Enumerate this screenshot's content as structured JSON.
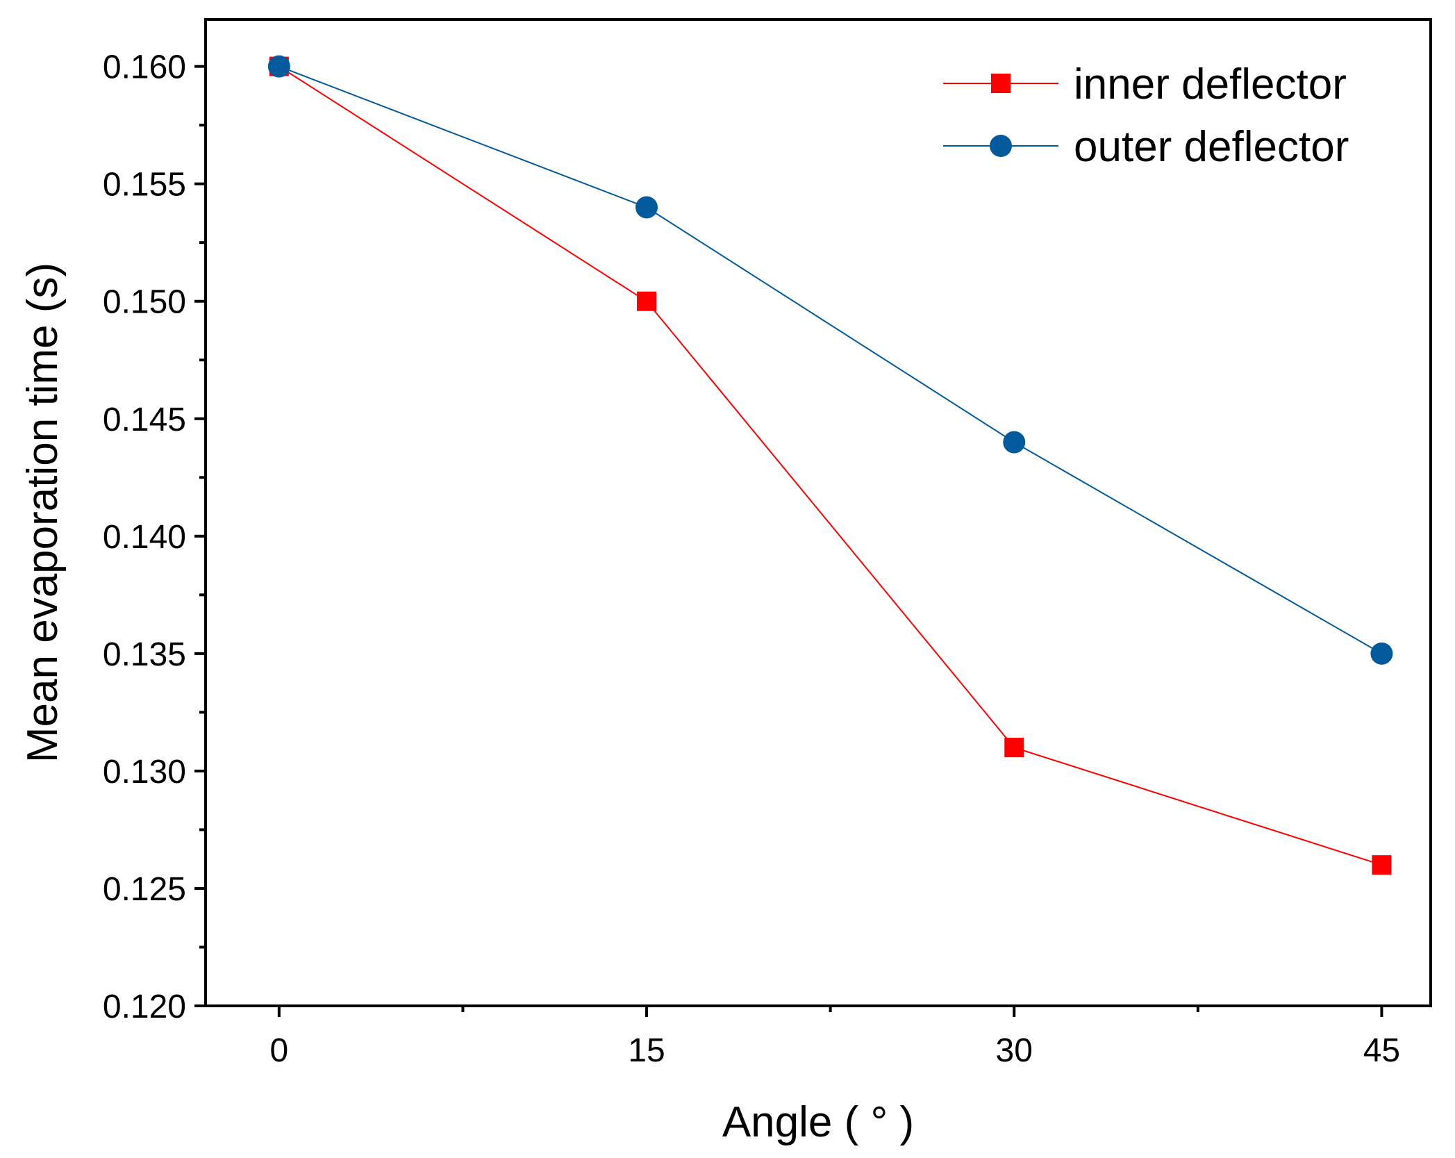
{
  "chart_data": {
    "type": "line",
    "title": "",
    "xlabel": "Angle ( ° )",
    "ylabel": "Mean evaporation time (s)",
    "x": [
      0,
      15,
      30,
      45
    ],
    "x_tick_labels": [
      "0",
      "15",
      "30",
      "45"
    ],
    "y_tick_labels": [
      "0.120",
      "0.125",
      "0.130",
      "0.135",
      "0.140",
      "0.145",
      "0.150",
      "0.155",
      "0.160"
    ],
    "xlim": [
      -3,
      47
    ],
    "ylim": [
      0.12,
      0.162
    ],
    "grid": false,
    "legend_position": "top-right",
    "series": [
      {
        "name": "inner deflector",
        "marker": "square",
        "color": "#ff0000",
        "values": [
          0.16,
          0.15,
          0.131,
          0.126
        ]
      },
      {
        "name": "outer deflector",
        "marker": "circle",
        "color": "#005a9c",
        "values": [
          0.16,
          0.154,
          0.144,
          0.135
        ]
      }
    ]
  }
}
